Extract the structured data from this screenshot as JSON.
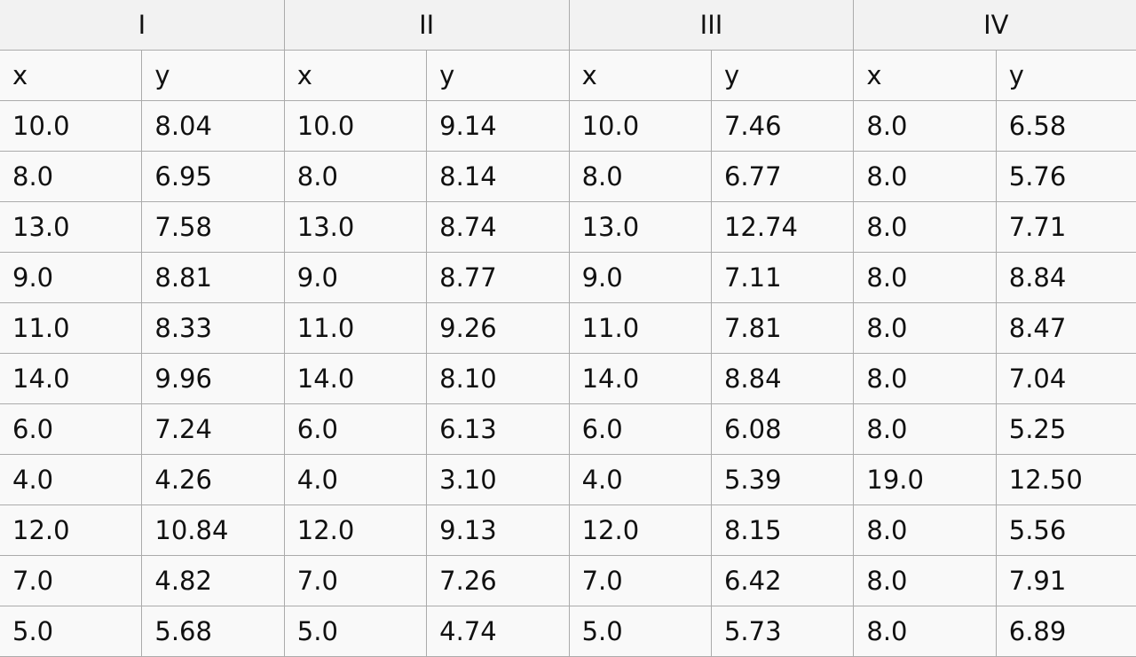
{
  "groups": [
    "I",
    "II",
    "III",
    "IV"
  ],
  "column_labels": [
    "x",
    "y",
    "x",
    "y",
    "x",
    "y",
    "x",
    "y"
  ],
  "rows": [
    [
      "10.0",
      "8.04",
      "10.0",
      "9.14",
      "10.0",
      "7.46",
      "8.0",
      "6.58"
    ],
    [
      "8.0",
      "6.95",
      "8.0",
      "8.14",
      "8.0",
      "6.77",
      "8.0",
      "5.76"
    ],
    [
      "13.0",
      "7.58",
      "13.0",
      "8.74",
      "13.0",
      "12.74",
      "8.0",
      "7.71"
    ],
    [
      "9.0",
      "8.81",
      "9.0",
      "8.77",
      "9.0",
      "7.11",
      "8.0",
      "8.84"
    ],
    [
      "11.0",
      "8.33",
      "11.0",
      "9.26",
      "11.0",
      "7.81",
      "8.0",
      "8.47"
    ],
    [
      "14.0",
      "9.96",
      "14.0",
      "8.10",
      "14.0",
      "8.84",
      "8.0",
      "7.04"
    ],
    [
      "6.0",
      "7.24",
      "6.0",
      "6.13",
      "6.0",
      "6.08",
      "8.0",
      "5.25"
    ],
    [
      "4.0",
      "4.26",
      "4.0",
      "3.10",
      "4.0",
      "5.39",
      "19.0",
      "12.50"
    ],
    [
      "12.0",
      "10.84",
      "12.0",
      "9.13",
      "12.0",
      "8.15",
      "8.0",
      "5.56"
    ],
    [
      "7.0",
      "4.82",
      "7.0",
      "7.26",
      "7.0",
      "6.42",
      "8.0",
      "7.91"
    ],
    [
      "5.0",
      "5.68",
      "5.0",
      "4.74",
      "5.0",
      "5.73",
      "8.0",
      "6.89"
    ]
  ]
}
